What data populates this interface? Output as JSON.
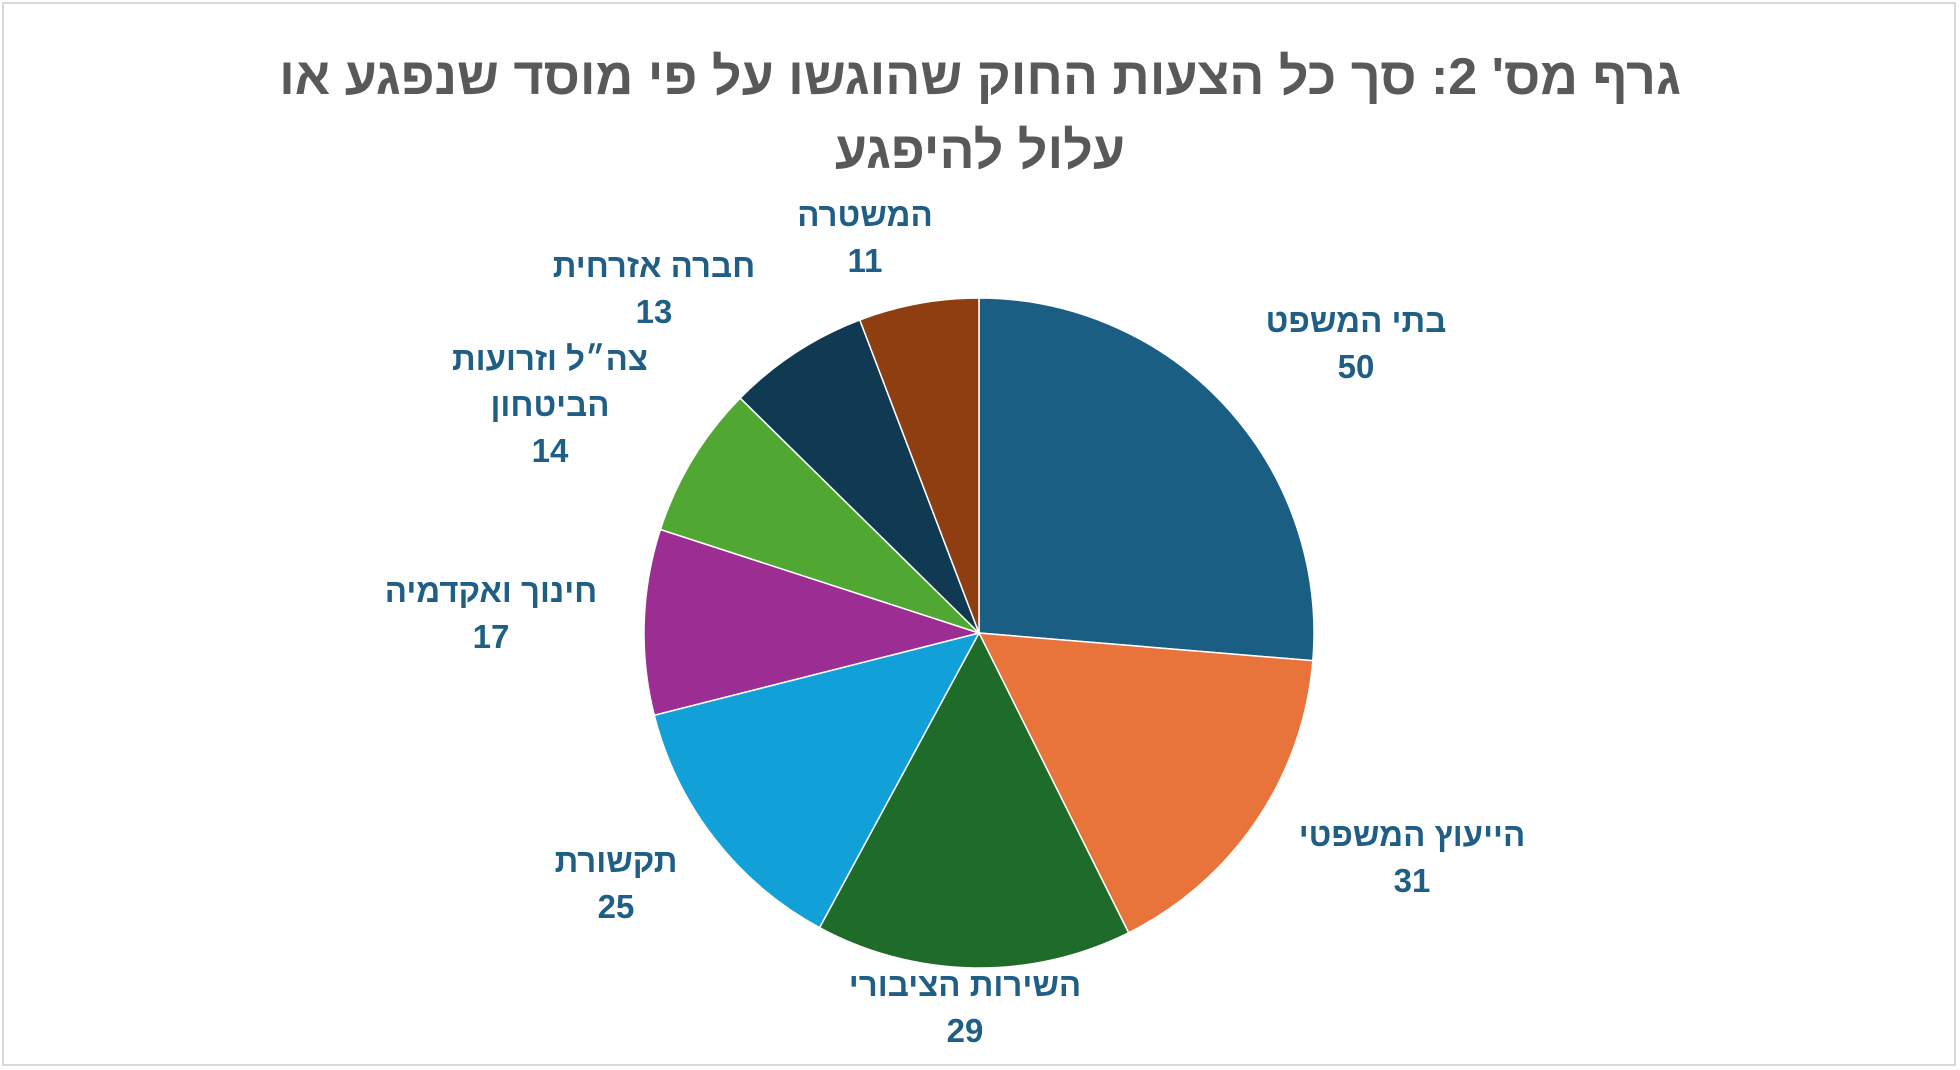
{
  "chart_data": {
    "type": "pie",
    "title": "גרף מס' 2: סך כל הצעות החוק שהוגשו על פי מוסד שנפגע או עלול להיפגע",
    "categories": [
      "בתי המשפט",
      "הייעוץ המשפטי",
      "השירות הציבורי",
      "תקשורת",
      "חינוך ואקדמיה",
      "צה״ל וזרועות הביטחון",
      "חברה אזרחית",
      "המשטרה"
    ],
    "values": [
      50,
      31,
      29,
      25,
      17,
      14,
      13,
      11
    ],
    "colors": [
      "#1b5e84",
      "#e8743b",
      "#1e6b2a",
      "#12a0d8",
      "#9b2d93",
      "#50a833",
      "#0f3a52",
      "#8e3e11"
    ]
  }
}
